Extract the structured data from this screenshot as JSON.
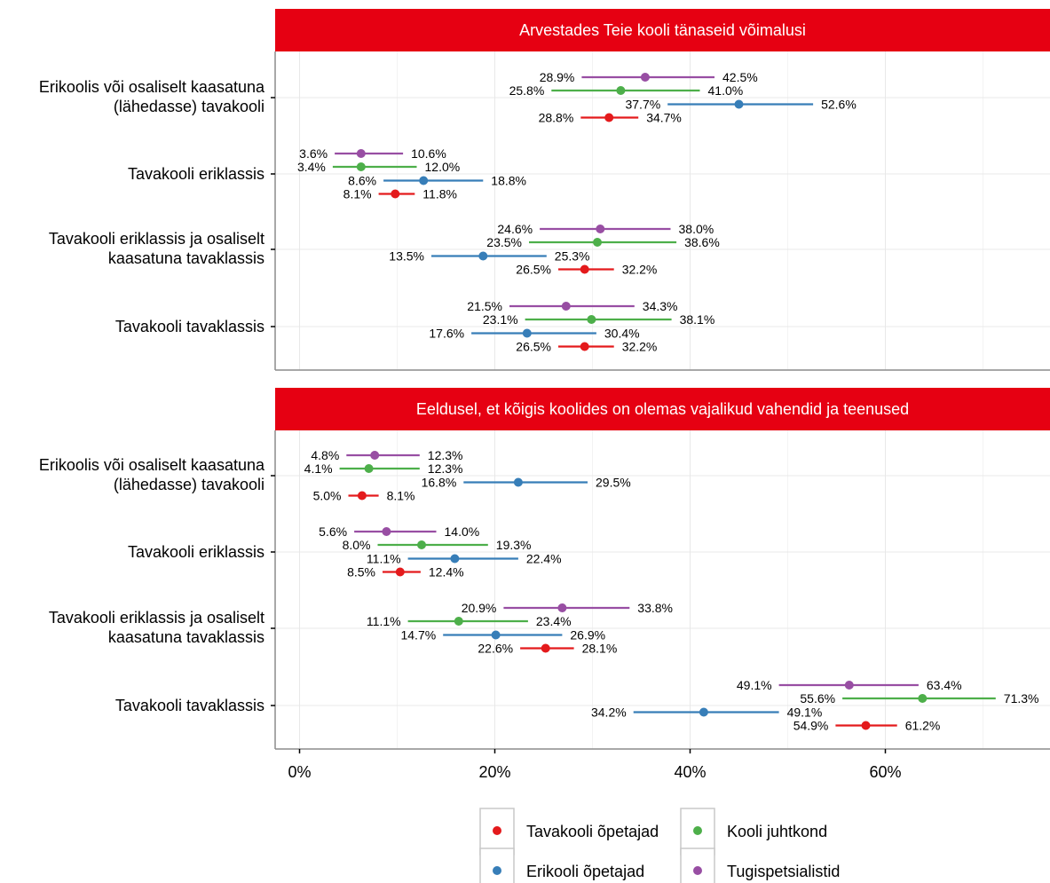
{
  "chart_data": {
    "type": "dot-range",
    "xlim": [
      -2.5,
      76
    ],
    "xticks": [
      0,
      20,
      40,
      60
    ],
    "xtick_labels": [
      "0%",
      "20%",
      "40%",
      "60%"
    ],
    "grid": true,
    "legend_position": "bottom",
    "series": [
      {
        "name": "Tavakooli õpetajad",
        "color": "#E41A1C"
      },
      {
        "name": "Erikooli õpetajad",
        "color": "#377EB8"
      },
      {
        "name": "Kooli juhtkond",
        "color": "#4DAF4A"
      },
      {
        "name": "Tugispetsialistid",
        "color": "#984EA3"
      }
    ],
    "panels": [
      {
        "title": "Arvestades Teie kooli tänaseid võimalusi",
        "rows": [
          {
            "label": [
              "Erikoolis või osaliselt kaasatuna",
              "(lähedasse) tavakooli"
            ],
            "points": [
              {
                "series": "Tugispetsialistid",
                "low": 28.9,
                "value": 35.4,
                "high": 42.5,
                "low_label": "28.9%",
                "high_label": "42.5%"
              },
              {
                "series": "Kooli juhtkond",
                "low": 25.8,
                "value": 32.9,
                "high": 41.0,
                "low_label": "25.8%",
                "high_label": "41.0%"
              },
              {
                "series": "Erikooli õpetajad",
                "low": 37.7,
                "value": 45.0,
                "high": 52.6,
                "low_label": "37.7%",
                "high_label": "52.6%"
              },
              {
                "series": "Tavakooli õpetajad",
                "low": 28.8,
                "value": 31.7,
                "high": 34.7,
                "low_label": "28.8%",
                "high_label": "34.7%"
              }
            ]
          },
          {
            "label": [
              "Tavakooli eriklassis"
            ],
            "points": [
              {
                "series": "Tugispetsialistid",
                "low": 3.6,
                "value": 6.3,
                "high": 10.6,
                "low_label": "3.6%",
                "high_label": "10.6%"
              },
              {
                "series": "Kooli juhtkond",
                "low": 3.4,
                "value": 6.3,
                "high": 12.0,
                "low_label": "3.4%",
                "high_label": "12.0%"
              },
              {
                "series": "Erikooli õpetajad",
                "low": 8.6,
                "value": 12.7,
                "high": 18.8,
                "low_label": "8.6%",
                "high_label": "18.8%"
              },
              {
                "series": "Tavakooli õpetajad",
                "low": 8.1,
                "value": 9.8,
                "high": 11.8,
                "low_label": "8.1%",
                "high_label": "11.8%"
              }
            ]
          },
          {
            "label": [
              "Tavakooli eriklassis ja osaliselt",
              "kaasatuna tavaklassis"
            ],
            "points": [
              {
                "series": "Tugispetsialistid",
                "low": 24.6,
                "value": 30.8,
                "high": 38.0,
                "low_label": "24.6%",
                "high_label": "38.0%"
              },
              {
                "series": "Kooli juhtkond",
                "low": 23.5,
                "value": 30.5,
                "high": 38.6,
                "low_label": "23.5%",
                "high_label": "38.6%"
              },
              {
                "series": "Erikooli õpetajad",
                "low": 13.5,
                "value": 18.8,
                "high": 25.3,
                "low_label": "13.5%",
                "high_label": "25.3%"
              },
              {
                "series": "Tavakooli õpetajad",
                "low": 26.5,
                "value": 29.2,
                "high": 32.2,
                "low_label": "26.5%",
                "high_label": "32.2%"
              }
            ]
          },
          {
            "label": [
              "Tavakooli tavaklassis"
            ],
            "points": [
              {
                "series": "Tugispetsialistid",
                "low": 21.5,
                "value": 27.3,
                "high": 34.3,
                "low_label": "21.5%",
                "high_label": "34.3%"
              },
              {
                "series": "Kooli juhtkond",
                "low": 23.1,
                "value": 29.9,
                "high": 38.1,
                "low_label": "23.1%",
                "high_label": "38.1%"
              },
              {
                "series": "Erikooli õpetajad",
                "low": 17.6,
                "value": 23.3,
                "high": 30.4,
                "low_label": "17.6%",
                "high_label": "30.4%"
              },
              {
                "series": "Tavakooli õpetajad",
                "low": 26.5,
                "value": 29.2,
                "high": 32.2,
                "low_label": "26.5%",
                "high_label": "32.2%"
              }
            ]
          }
        ]
      },
      {
        "title": "Eeldusel, et kõigis koolides on olemas vajalikud vahendid ja teenused",
        "rows": [
          {
            "label": [
              "Erikoolis või osaliselt kaasatuna",
              "(lähedasse) tavakooli"
            ],
            "points": [
              {
                "series": "Tugispetsialistid",
                "low": 4.8,
                "value": 7.7,
                "high": 12.3,
                "low_label": "4.8%",
                "high_label": "12.3%"
              },
              {
                "series": "Kooli juhtkond",
                "low": 4.1,
                "value": 7.1,
                "high": 12.3,
                "low_label": "4.1%",
                "high_label": "12.3%"
              },
              {
                "series": "Erikooli õpetajad",
                "low": 16.8,
                "value": 22.4,
                "high": 29.5,
                "low_label": "16.8%",
                "high_label": "29.5%"
              },
              {
                "series": "Tavakooli õpetajad",
                "low": 5.0,
                "value": 6.4,
                "high": 8.1,
                "low_label": "5.0%",
                "high_label": "8.1%"
              }
            ]
          },
          {
            "label": [
              "Tavakooli eriklassis"
            ],
            "points": [
              {
                "series": "Tugispetsialistid",
                "low": 5.6,
                "value": 8.9,
                "high": 14.0,
                "low_label": "5.6%",
                "high_label": "14.0%"
              },
              {
                "series": "Kooli juhtkond",
                "low": 8.0,
                "value": 12.5,
                "high": 19.3,
                "low_label": "8.0%",
                "high_label": "19.3%"
              },
              {
                "series": "Erikooli õpetajad",
                "low": 11.1,
                "value": 15.9,
                "high": 22.4,
                "low_label": "11.1%",
                "high_label": "22.4%"
              },
              {
                "series": "Tavakooli õpetajad",
                "low": 8.5,
                "value": 10.3,
                "high": 12.4,
                "low_label": "8.5%",
                "high_label": "12.4%"
              }
            ]
          },
          {
            "label": [
              "Tavakooli eriklassis ja osaliselt",
              "kaasatuna tavaklassis"
            ],
            "points": [
              {
                "series": "Tugispetsialistid",
                "low": 20.9,
                "value": 26.9,
                "high": 33.8,
                "low_label": "20.9%",
                "high_label": "33.8%"
              },
              {
                "series": "Kooli juhtkond",
                "low": 11.1,
                "value": 16.3,
                "high": 23.4,
                "low_label": "11.1%",
                "high_label": "23.4%"
              },
              {
                "series": "Erikooli õpetajad",
                "low": 14.7,
                "value": 20.1,
                "high": 26.9,
                "low_label": "14.7%",
                "high_label": "26.9%"
              },
              {
                "series": "Tavakooli õpetajad",
                "low": 22.6,
                "value": 25.2,
                "high": 28.1,
                "low_label": "22.6%",
                "high_label": "28.1%"
              }
            ]
          },
          {
            "label": [
              "Tavakooli tavaklassis"
            ],
            "points": [
              {
                "series": "Tugispetsialistid",
                "low": 49.1,
                "value": 56.3,
                "high": 63.4,
                "low_label": "49.1%",
                "high_label": "63.4%"
              },
              {
                "series": "Kooli juhtkond",
                "low": 55.6,
                "value": 63.8,
                "high": 71.3,
                "low_label": "55.6%",
                "high_label": "71.3%"
              },
              {
                "series": "Erikooli õpetajad",
                "low": 34.2,
                "value": 41.4,
                "high": 49.1,
                "low_label": "34.2%",
                "high_label": "49.1%"
              },
              {
                "series": "Tavakooli õpetajad",
                "low": 54.9,
                "value": 58.0,
                "high": 61.2,
                "low_label": "54.9%",
                "high_label": "61.2%"
              }
            ]
          }
        ]
      }
    ]
  }
}
